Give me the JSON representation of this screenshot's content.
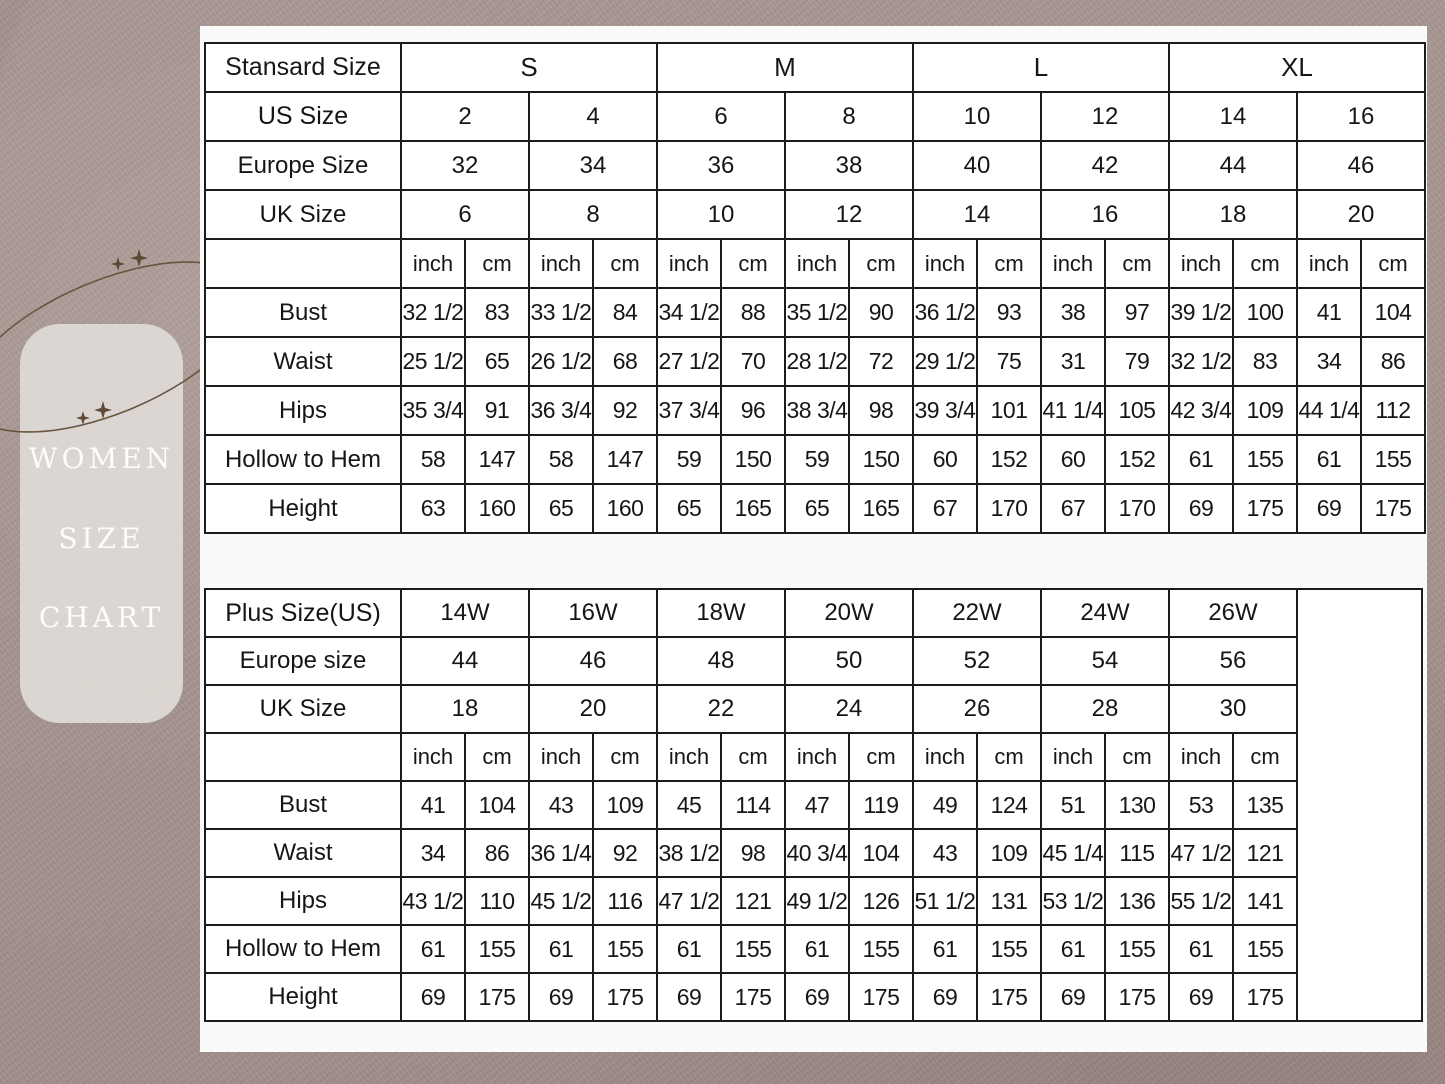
{
  "poster": {
    "title_lines": [
      "WOMEN",
      "SIZE",
      "CHART"
    ]
  },
  "colors": {
    "background": "#a5938e",
    "panel": "#fbfafa",
    "card": "#ddd8d3",
    "card_text": "#fdfdfc",
    "table_border": "#1c1c1c",
    "ornament_line": "#6a543e"
  },
  "icons": {
    "sparkle": "four-point-star"
  },
  "standard_table": {
    "corner_label": "Stansard Size",
    "group_labels": [
      "S",
      "M",
      "L",
      "XL"
    ],
    "us_size_label": "US Size",
    "europe_size_label": "Europe Size",
    "uk_size_label": "UK Size",
    "us_sizes": [
      "2",
      "4",
      "6",
      "8",
      "10",
      "12",
      "14",
      "16"
    ],
    "europe_sizes": [
      "32",
      "34",
      "36",
      "38",
      "40",
      "42",
      "44",
      "46"
    ],
    "uk_sizes": [
      "6",
      "8",
      "10",
      "12",
      "14",
      "16",
      "18",
      "20"
    ],
    "unit_labels": [
      "inch",
      "cm"
    ],
    "measurement_rows": [
      {
        "label": "Bust",
        "values": [
          "32 1/2",
          "83",
          "33 1/2",
          "84",
          "34 1/2",
          "88",
          "35 1/2",
          "90",
          "36 1/2",
          "93",
          "38",
          "97",
          "39 1/2",
          "100",
          "41",
          "104"
        ]
      },
      {
        "label": "Waist",
        "values": [
          "25 1/2",
          "65",
          "26 1/2",
          "68",
          "27 1/2",
          "70",
          "28 1/2",
          "72",
          "29 1/2",
          "75",
          "31",
          "79",
          "32 1/2",
          "83",
          "34",
          "86"
        ]
      },
      {
        "label": "Hips",
        "values": [
          "35 3/4",
          "91",
          "36 3/4",
          "92",
          "37 3/4",
          "96",
          "38 3/4",
          "98",
          "39 3/4",
          "101",
          "41 1/4",
          "105",
          "42 3/4",
          "109",
          "44 1/4",
          "112"
        ]
      },
      {
        "label": "Hollow to Hem",
        "values": [
          "58",
          "147",
          "58",
          "147",
          "59",
          "150",
          "59",
          "150",
          "60",
          "152",
          "60",
          "152",
          "61",
          "155",
          "61",
          "155"
        ]
      },
      {
        "label": "Height",
        "values": [
          "63",
          "160",
          "65",
          "160",
          "65",
          "165",
          "65",
          "165",
          "67",
          "170",
          "67",
          "170",
          "69",
          "175",
          "69",
          "175"
        ]
      }
    ]
  },
  "plus_table": {
    "corner_label": "Plus Size(US)",
    "europe_size_label": "Europe size",
    "uk_size_label": "UK Size",
    "plus_sizes": [
      "14W",
      "16W",
      "18W",
      "20W",
      "22W",
      "24W",
      "26W"
    ],
    "europe_sizes": [
      "44",
      "46",
      "48",
      "50",
      "52",
      "54",
      "56"
    ],
    "uk_sizes": [
      "18",
      "20",
      "22",
      "24",
      "26",
      "28",
      "30"
    ],
    "unit_labels": [
      "inch",
      "cm"
    ],
    "measurement_rows": [
      {
        "label": "Bust",
        "values": [
          "41",
          "104",
          "43",
          "109",
          "45",
          "114",
          "47",
          "119",
          "49",
          "124",
          "51",
          "130",
          "53",
          "135"
        ]
      },
      {
        "label": "Waist",
        "values": [
          "34",
          "86",
          "36 1/4",
          "92",
          "38 1/2",
          "98",
          "40 3/4",
          "104",
          "43",
          "109",
          "45 1/4",
          "115",
          "47 1/2",
          "121"
        ]
      },
      {
        "label": "Hips",
        "values": [
          "43 1/2",
          "110",
          "45 1/2",
          "116",
          "47 1/2",
          "121",
          "49 1/2",
          "126",
          "51 1/2",
          "131",
          "53 1/2",
          "136",
          "55 1/2",
          "141"
        ]
      },
      {
        "label": "Hollow to Hem",
        "values": [
          "61",
          "155",
          "61",
          "155",
          "61",
          "155",
          "61",
          "155",
          "61",
          "155",
          "61",
          "155",
          "61",
          "155"
        ]
      },
      {
        "label": "Height",
        "values": [
          "69",
          "175",
          "69",
          "175",
          "69",
          "175",
          "69",
          "175",
          "69",
          "175",
          "69",
          "175",
          "69",
          "175"
        ]
      }
    ]
  }
}
